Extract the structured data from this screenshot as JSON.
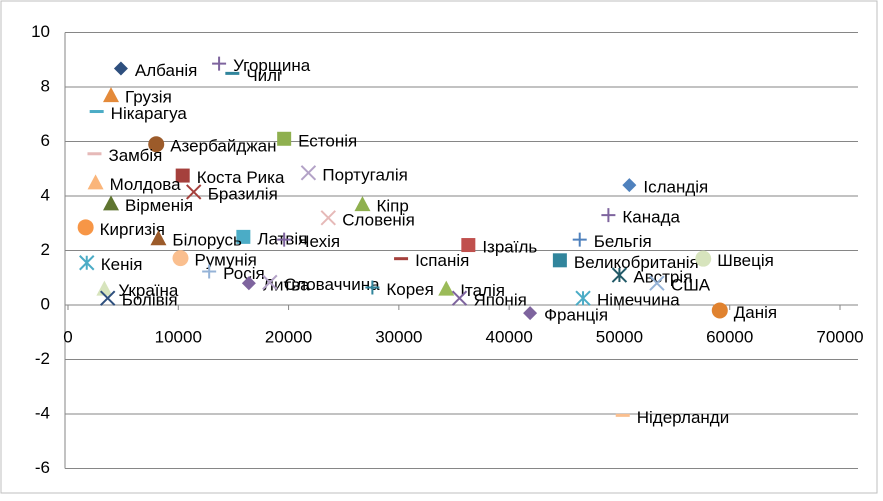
{
  "chart_data": {
    "type": "scatter",
    "xlim": [
      0,
      70000
    ],
    "xticks": [
      0,
      10000,
      20000,
      30000,
      40000,
      50000,
      60000,
      70000
    ],
    "ylim": [
      -6,
      10
    ],
    "yticks": [
      -6,
      -4,
      -2,
      0,
      2,
      4,
      6,
      8,
      10
    ],
    "grid": true,
    "points": [
      {
        "name": "Албанія",
        "x": 4800,
        "y": 8.68,
        "marker": "diamond",
        "color": "#2e4f7e"
      },
      {
        "name": "Угорщина",
        "x": 13700,
        "y": 8.86,
        "marker": "plus",
        "color": "#7e649e"
      },
      {
        "name": "Чилі",
        "x": 14900,
        "y": 8.5,
        "marker": "dash",
        "color": "#31859c"
      },
      {
        "name": "Грузія",
        "x": 3900,
        "y": 7.7,
        "marker": "triangle",
        "color": "#e48a3a"
      },
      {
        "name": "Нікарагуа",
        "x": 2600,
        "y": 7.1,
        "marker": "dash",
        "color": "#4bacc6"
      },
      {
        "name": "Азербайджан",
        "x": 8000,
        "y": 5.9,
        "marker": "circle",
        "color": "#9c5b2a"
      },
      {
        "name": "Естонія",
        "x": 19600,
        "y": 6.1,
        "marker": "square",
        "color": "#8fb04f"
      },
      {
        "name": "Замбія",
        "x": 2400,
        "y": 5.55,
        "marker": "dash",
        "color": "#e6b9b8"
      },
      {
        "name": "Коста Рика",
        "x": 10400,
        "y": 4.75,
        "marker": "square",
        "color": "#a5403c"
      },
      {
        "name": "Португалія",
        "x": 21800,
        "y": 4.85,
        "marker": "x",
        "color": "#b3a2c7"
      },
      {
        "name": "Молдова",
        "x": 2500,
        "y": 4.5,
        "marker": "triangle",
        "color": "#fab57a"
      },
      {
        "name": "Бразилія",
        "x": 11400,
        "y": 4.15,
        "marker": "x",
        "color": "#a5403c"
      },
      {
        "name": "Вірменія",
        "x": 3900,
        "y": 3.73,
        "marker": "triangle",
        "color": "#5f7530"
      },
      {
        "name": "Кіпр",
        "x": 26700,
        "y": 3.7,
        "marker": "triangle",
        "color": "#8fb04f"
      },
      {
        "name": "Словенія",
        "x": 23600,
        "y": 3.2,
        "marker": "x",
        "color": "#e6b9b8"
      },
      {
        "name": "Ісландія",
        "x": 50900,
        "y": 4.4,
        "marker": "diamond",
        "color": "#4f81bd"
      },
      {
        "name": "Канада",
        "x": 49000,
        "y": 3.3,
        "marker": "plus",
        "color": "#7e649e"
      },
      {
        "name": "Киргизія",
        "x": 1600,
        "y": 2.85,
        "marker": "circle",
        "color": "#f79646"
      },
      {
        "name": "Латвія",
        "x": 15900,
        "y": 2.5,
        "marker": "square",
        "color": "#4bacc6"
      },
      {
        "name": "Чехія",
        "x": 19600,
        "y": 2.4,
        "marker": "plus",
        "color": "#7e649e"
      },
      {
        "name": "Білорусь",
        "x": 8200,
        "y": 2.45,
        "marker": "triangle",
        "color": "#9c5b2a"
      },
      {
        "name": "Ізраїль",
        "x": 36300,
        "y": 2.2,
        "marker": "square",
        "color": "#c0504d"
      },
      {
        "name": "Іспанія",
        "x": 30200,
        "y": 1.7,
        "marker": "dash",
        "color": "#a5403c"
      },
      {
        "name": "Бельгія",
        "x": 46400,
        "y": 2.4,
        "marker": "plus",
        "color": "#4f81bd"
      },
      {
        "name": "Великобританія",
        "x": 44600,
        "y": 1.64,
        "marker": "square",
        "color": "#31859c"
      },
      {
        "name": "Швеція",
        "x": 57600,
        "y": 1.7,
        "marker": "circle",
        "color": "#d7e4bd"
      },
      {
        "name": "Кенія",
        "x": 1700,
        "y": 1.55,
        "marker": "asterisk",
        "color": "#4bacc6"
      },
      {
        "name": "Україна",
        "x": 3300,
        "y": 0.6,
        "marker": "triangle",
        "color": "#d7e4bd"
      },
      {
        "name": "Румунія",
        "x": 10200,
        "y": 1.72,
        "marker": "circle",
        "color": "#fabf8f"
      },
      {
        "name": "Росія",
        "x": 12800,
        "y": 1.23,
        "marker": "plus",
        "color": "#95b3d7"
      },
      {
        "name": "Болівія",
        "x": 3600,
        "y": 0.25,
        "marker": "x",
        "color": "#2e4f7e"
      },
      {
        "name": "Литва",
        "x": 16400,
        "y": 0.8,
        "marker": "diamond",
        "color": "#7e649e"
      },
      {
        "name": "Словаччина",
        "x": 18300,
        "y": 0.83,
        "marker": "x",
        "color": "#b3a2c7"
      },
      {
        "name": "Корея",
        "x": 27600,
        "y": 0.64,
        "marker": "plus",
        "color": "#31859c"
      },
      {
        "name": "Італія",
        "x": 34300,
        "y": 0.6,
        "marker": "triangle",
        "color": "#9bbb59"
      },
      {
        "name": "Японія",
        "x": 35500,
        "y": 0.25,
        "marker": "x",
        "color": "#7e649e"
      },
      {
        "name": "Німеччина",
        "x": 46700,
        "y": 0.25,
        "marker": "asterisk",
        "color": "#4bacc6"
      },
      {
        "name": "Франція",
        "x": 41900,
        "y": -0.3,
        "marker": "diamond",
        "color": "#7e649e"
      },
      {
        "name": "Австрія",
        "x": 50000,
        "y": 1.1,
        "marker": "asterisk",
        "color": "#215967"
      },
      {
        "name": "США",
        "x": 53400,
        "y": 0.8,
        "marker": "x",
        "color": "#95b3d7"
      },
      {
        "name": "Данія",
        "x": 59100,
        "y": -0.2,
        "marker": "circle",
        "color": "#e0822f"
      },
      {
        "name": "Нідерланди",
        "x": 50300,
        "y": -4.05,
        "marker": "dash",
        "color": "#fabf8f"
      }
    ]
  }
}
